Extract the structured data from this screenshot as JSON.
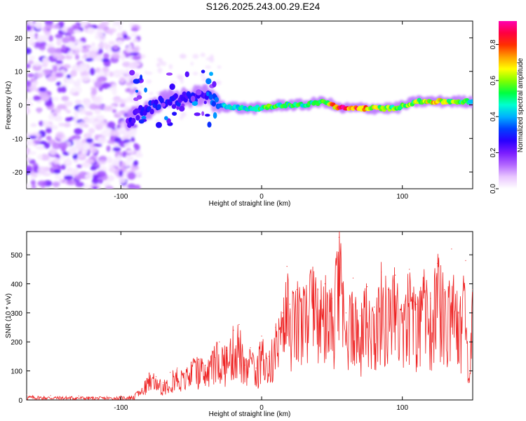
{
  "figure_title": "S126.2025.243.00.29.E24",
  "chart_data": [
    {
      "type": "heatmap",
      "title": "S126.2025.243.00.29.E24",
      "xlabel": "Height of straight line (km)",
      "ylabel": "Frequency (Hz)",
      "xlim": [
        -167,
        150
      ],
      "ylim": [
        -25,
        25
      ],
      "xticks": [
        -100,
        0,
        100
      ],
      "yticks": [
        -20,
        -10,
        0,
        10,
        20
      ],
      "colorbar": {
        "label": "Normalized spectral amplitude",
        "range": [
          0,
          0.93
        ],
        "ticks": [
          0.0,
          0.2,
          0.4,
          0.6,
          0.8
        ],
        "colors": [
          "#ffffff",
          "#e9c6ff",
          "#b266ff",
          "#7a1cff",
          "#2a00ff",
          "#0040ff",
          "#00b0ff",
          "#00ffd0",
          "#00ff40",
          "#80ff00",
          "#ffff00",
          "#ffa000",
          "#ff3000",
          "#ff0040",
          "#ff00b0"
        ]
      },
      "signal_band": {
        "description": "frequency ridge near 0 Hz",
        "points": [
          {
            "height": -95,
            "frequency": -5,
            "amplitude": 0.25
          },
          {
            "height": -85,
            "frequency": -2,
            "amplitude": 0.3
          },
          {
            "height": -70,
            "frequency": 1,
            "amplitude": 0.3
          },
          {
            "height": -55,
            "frequency": 2,
            "amplitude": 0.3
          },
          {
            "height": -40,
            "frequency": 3,
            "amplitude": 0.3
          },
          {
            "height": -30,
            "frequency": 0,
            "amplitude": 0.45
          },
          {
            "height": -15,
            "frequency": -1,
            "amplitude": 0.5
          },
          {
            "height": 0,
            "frequency": -1,
            "amplitude": 0.6
          },
          {
            "height": 15,
            "frequency": 0,
            "amplitude": 0.55
          },
          {
            "height": 30,
            "frequency": 0,
            "amplitude": 0.55
          },
          {
            "height": 45,
            "frequency": 1,
            "amplitude": 0.6
          },
          {
            "height": 55,
            "frequency": -1,
            "amplitude": 0.92
          },
          {
            "height": 65,
            "frequency": -1,
            "amplitude": 0.9
          },
          {
            "height": 80,
            "frequency": -1,
            "amplitude": 0.7
          },
          {
            "height": 95,
            "frequency": -1,
            "amplitude": 0.6
          },
          {
            "height": 110,
            "frequency": 1,
            "amplitude": 0.65
          },
          {
            "height": 125,
            "frequency": 1,
            "amplitude": 0.75
          },
          {
            "height": 140,
            "frequency": 1,
            "amplitude": 0.6
          },
          {
            "height": 150,
            "frequency": 1,
            "amplitude": 0.5
          }
        ]
      }
    },
    {
      "type": "line",
      "title": "",
      "xlabel": "Height of straight line (km)",
      "ylabel": "SNR (10 * v/v)",
      "xlim": [
        -167,
        150
      ],
      "ylim": [
        0,
        580
      ],
      "xticks": [
        -100,
        0,
        100
      ],
      "yticks": [
        0,
        100,
        200,
        300,
        400,
        500
      ],
      "color": "#ee2222",
      "series": [
        {
          "name": "SNR",
          "x": [
            -167,
            -150,
            -130,
            -110,
            -100,
            -90,
            -85,
            -80,
            -75,
            -70,
            -65,
            -60,
            -55,
            -50,
            -45,
            -40,
            -35,
            -30,
            -25,
            -20,
            -16,
            -12,
            -8,
            -4,
            0,
            5,
            10,
            15,
            18,
            20,
            25,
            30,
            35,
            40,
            45,
            50,
            55,
            60,
            65,
            70,
            75,
            80,
            85,
            90,
            95,
            100,
            105,
            110,
            115,
            120,
            125,
            130,
            135,
            140,
            145,
            147,
            150
          ],
          "y": [
            18,
            15,
            14,
            12,
            14,
            20,
            40,
            90,
            80,
            60,
            95,
            110,
            90,
            130,
            140,
            120,
            160,
            200,
            170,
            240,
            260,
            120,
            180,
            110,
            220,
            150,
            250,
            300,
            460,
            330,
            380,
            360,
            440,
            380,
            400,
            350,
            560,
            300,
            420,
            290,
            390,
            320,
            440,
            380,
            430,
            300,
            450,
            330,
            420,
            350,
            470,
            380,
            520,
            300,
            480,
            60,
            380
          ]
        }
      ]
    }
  ]
}
